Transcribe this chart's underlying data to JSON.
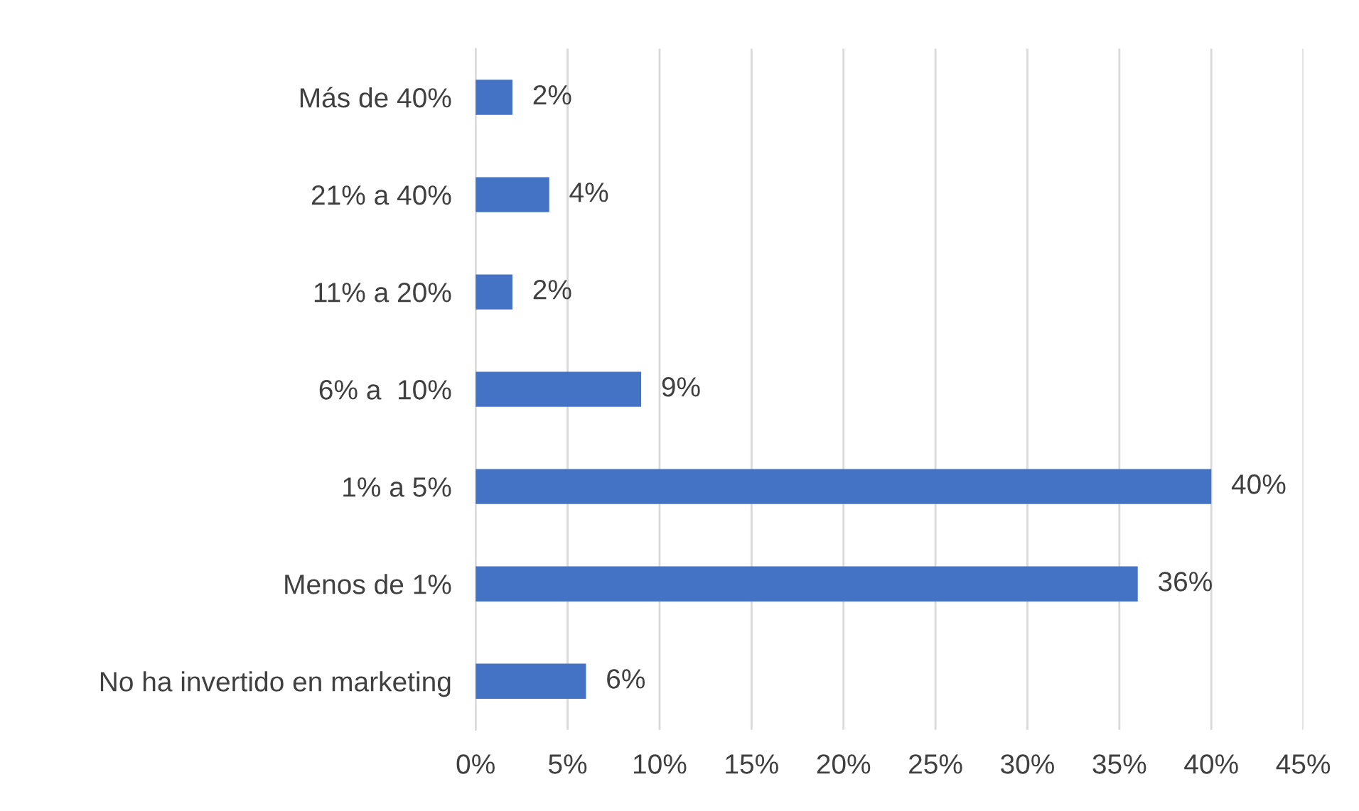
{
  "chart_data": {
    "type": "bar",
    "orientation": "horizontal",
    "categories": [
      "Más de 40%",
      "21% a 40%",
      "11% a 20%",
      "6% a  10%",
      "1% a 5%",
      "Menos de 1%",
      "No ha invertido en marketing"
    ],
    "values": [
      2,
      4,
      2,
      9,
      40,
      36,
      6
    ],
    "value_labels": [
      "2%",
      "4%",
      "2%",
      "9%",
      "40%",
      "36%",
      "6%"
    ],
    "color": "#4472c4",
    "xlim": [
      0,
      45
    ],
    "xticks": [
      {
        "value": 0,
        "label": "0%"
      },
      {
        "value": 5,
        "label": "5%"
      },
      {
        "value": 10,
        "label": "10%"
      },
      {
        "value": 15,
        "label": "15%"
      },
      {
        "value": 20,
        "label": "20%"
      },
      {
        "value": 25,
        "label": "25%"
      },
      {
        "value": 30,
        "label": "30%"
      },
      {
        "value": 35,
        "label": "35%"
      },
      {
        "value": 40,
        "label": "40%"
      },
      {
        "value": 45,
        "label": "45%"
      }
    ],
    "grid": "x",
    "legend": false
  }
}
